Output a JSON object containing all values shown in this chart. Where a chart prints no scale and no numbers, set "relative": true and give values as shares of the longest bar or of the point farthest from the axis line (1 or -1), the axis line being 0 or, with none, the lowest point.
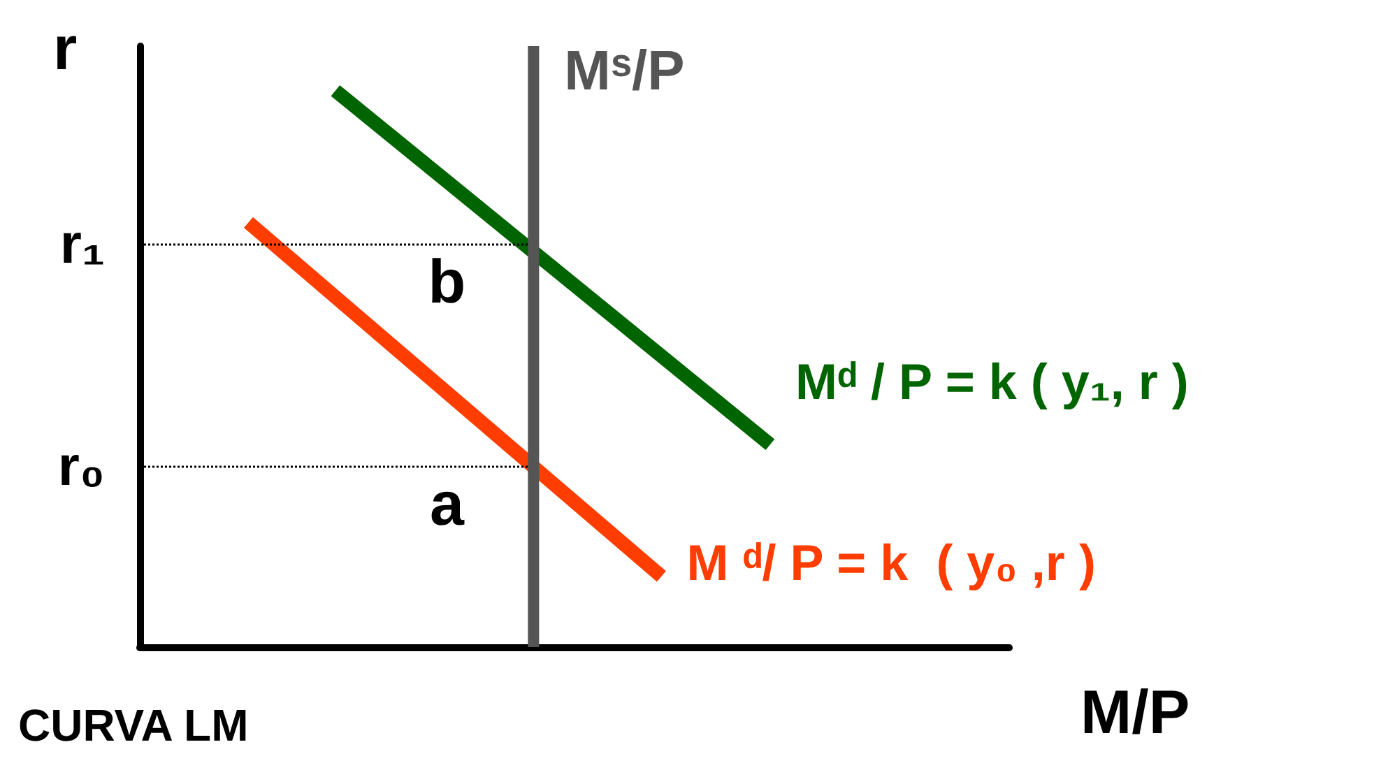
{
  "chart_data": {
    "type": "line",
    "relative": true,
    "ylabel": "r",
    "xlabel": "M/P",
    "grid": false,
    "marker": "none",
    "line_style": "solid",
    "categories": [
      null,
      null,
      null,
      null,
      null,
      null,
      null,
      null,
      null,
      null,
      null,
      null,
      null,
      null,
      null,
      null,
      null,
      null,
      null,
      null,
      null,
      null,
      null,
      null,
      null,
      null,
      null,
      null,
      null,
      null,
      null,
      null,
      null,
      null,
      null,
      null,
      null,
      null,
      null,
      null,
      null
    ],
    "series": [
      {
        "name": "Mᵈ / P = k ( y₁, r )",
        "color": "#006400",
        "values": [
          null,
          null,
          null,
          null,
          null,
          null,
          null,
          null,
          null,
          1,
          null,
          null,
          null,
          null,
          null,
          null,
          null,
          null,
          null,
          null,
          null,
          null,
          null,
          null,
          null,
          null,
          null,
          null,
          null,
          0.364,
          null,
          null,
          null,
          null,
          null,
          null,
          null,
          null,
          null,
          null,
          null
        ]
      },
      {
        "name": "M ᵈ/ P = k  ( y₀ ,r )",
        "color": "#ff3d00",
        "values": [
          null,
          null,
          null,
          null,
          null,
          0.763,
          null,
          null,
          null,
          null,
          null,
          null,
          null,
          null,
          null,
          null,
          null,
          null,
          null,
          null,
          null,
          null,
          null,
          null,
          0.127,
          null,
          null,
          null,
          null,
          null,
          null,
          null,
          null,
          null,
          null,
          null,
          null,
          null,
          null,
          null,
          null
        ]
      }
    ],
    "ref_lines": [
      {
        "axis": "y",
        "value": 0.723,
        "label": "r₁",
        "color": "#000000",
        "line_style": "dotted"
      },
      {
        "axis": "y",
        "value": 0.324,
        "label": "r₀",
        "color": "#000000",
        "line_style": "dotted"
      }
    ],
    "annotations": [
      "b",
      "a",
      "CURVA LM",
      "Mˢ/P"
    ]
  }
}
